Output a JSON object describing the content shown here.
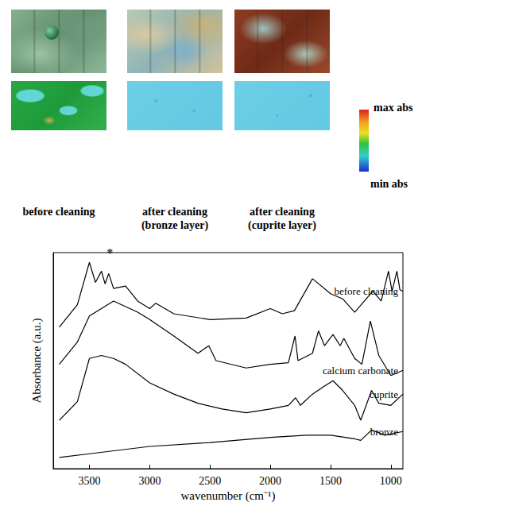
{
  "panels": [
    {
      "label": "before cleaning"
    },
    {
      "label": "after cleaning (bronze layer)"
    },
    {
      "label": "after cleaning (cuprite layer)"
    }
  ],
  "colorbar": {
    "max_label": "max abs",
    "min_label": "min abs"
  },
  "chart_data": {
    "type": "line",
    "xlabel": "wavenumber (cm⁻¹)",
    "ylabel": "Absorbance (a.u.)",
    "xlim": [
      3800,
      900
    ],
    "xticks": [
      3500,
      3000,
      2500,
      2000,
      1500,
      1000
    ],
    "ylim": [
      0,
      10
    ],
    "tick_labels": "x",
    "grid": false,
    "annotations": [
      {
        "text": "*",
        "x": 3330,
        "y": 9.5
      }
    ],
    "series": [
      {
        "name": "before cleaning",
        "color": "#000000",
        "x": [
          3750,
          3600,
          3500,
          3450,
          3400,
          3370,
          3340,
          3300,
          3200,
          3100,
          3000,
          2950,
          2800,
          2500,
          2200,
          2000,
          1900,
          1800,
          1650,
          1500,
          1400,
          1300,
          1150,
          1080,
          1020,
          990,
          950,
          925,
          900
        ],
        "values": [
          6.55,
          7.59,
          9.55,
          8.62,
          9.14,
          8.55,
          9.03,
          8.34,
          8.45,
          7.76,
          7.41,
          7.66,
          7.17,
          6.9,
          6.97,
          7.41,
          7.17,
          7.31,
          8.79,
          8.1,
          7.86,
          7.24,
          8.21,
          7.76,
          9.14,
          8.21,
          9.14,
          8.28,
          8.21
        ]
      },
      {
        "name": "calcium carbonate",
        "color": "#000000",
        "x": [
          3750,
          3600,
          3500,
          3300,
          3100,
          3000,
          2800,
          2600,
          2510,
          2450,
          2200,
          2000,
          1850,
          1795,
          1770,
          1650,
          1600,
          1550,
          1480,
          1420,
          1390,
          1300,
          1240,
          1170,
          1100,
          1000,
          900
        ],
        "values": [
          4.83,
          5.86,
          7.07,
          7.76,
          7.24,
          6.9,
          6.14,
          5.34,
          5.69,
          5.0,
          4.66,
          4.83,
          4.9,
          6.14,
          5.0,
          5.34,
          6.38,
          5.69,
          6.21,
          5.69,
          6.03,
          5.1,
          4.83,
          6.83,
          5.24,
          4.31,
          4.55
        ]
      },
      {
        "name": "cuprite",
        "color": "#000000",
        "x": [
          3750,
          3600,
          3500,
          3400,
          3300,
          3200,
          3000,
          2800,
          2600,
          2400,
          2200,
          2000,
          1850,
          1790,
          1750,
          1650,
          1560,
          1480,
          1400,
          1300,
          1250,
          1160,
          1100,
          1000,
          900
        ],
        "values": [
          2.24,
          3.1,
          5.1,
          5.24,
          5.1,
          4.83,
          3.97,
          3.45,
          3.03,
          2.76,
          2.59,
          2.76,
          2.93,
          3.28,
          2.93,
          3.45,
          3.79,
          4.07,
          3.62,
          2.93,
          2.24,
          3.62,
          3.03,
          2.93,
          3.45
        ]
      },
      {
        "name": "bronze",
        "color": "#000000",
        "x": [
          3750,
          3500,
          3000,
          2500,
          2000,
          1700,
          1500,
          1300,
          1250,
          1160,
          1050,
          900
        ],
        "values": [
          0.52,
          0.69,
          1.03,
          1.21,
          1.45,
          1.55,
          1.55,
          1.38,
          1.31,
          1.79,
          1.55,
          1.72
        ]
      }
    ]
  }
}
